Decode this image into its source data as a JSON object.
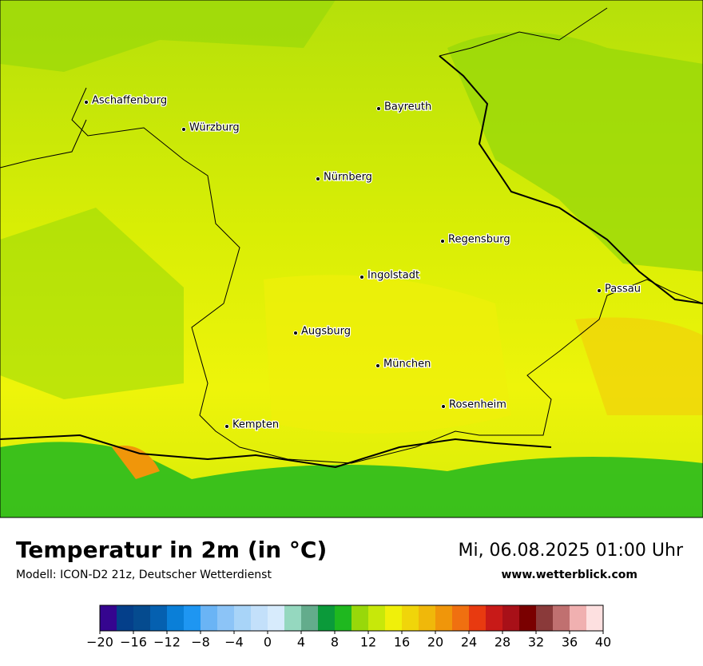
{
  "map": {
    "cities": [
      "Aschaffenburg",
      "Würzburg",
      "Bayreuth",
      "Nürnberg",
      "Regensburg",
      "Ingolstadt",
      "Passau",
      "Augsburg",
      "München",
      "Rosenheim",
      "Kempten"
    ]
  },
  "footer": {
    "title": "Temperatur in 2m (in °C)",
    "subtitle": "Modell: ICON-D2 21z, Deutscher Wetterdienst",
    "date": "Mi, 06.08.2025 01:00 Uhr",
    "website": "www.wetterblick.com"
  },
  "colorbar": {
    "range": [
      -20,
      40
    ],
    "ticks": [
      {
        "value": -20,
        "label": "−20"
      },
      {
        "value": -16,
        "label": "−16"
      },
      {
        "value": -12,
        "label": "−12"
      },
      {
        "value": -8,
        "label": "−8"
      },
      {
        "value": -4,
        "label": "−4"
      },
      0,
      4,
      8,
      12,
      16,
      20,
      24,
      28,
      32,
      36,
      40
    ],
    "colors": [
      "#35058f",
      "#043f8a",
      "#054b8f",
      "#0560b0",
      "#0a7fd8",
      "#1e96f2",
      "#6ab4f5",
      "#8cc4f7",
      "#a8d4f8",
      "#c3e0fa",
      "#d7ebfc",
      "#95d8bf",
      "#63ac8c",
      "#0b9a3a",
      "#1fb81f",
      "#98d80a",
      "#c7e80a",
      "#f0f00a",
      "#f0d50a",
      "#f0b80a",
      "#f0960a",
      "#f07010",
      "#e83a10",
      "#c81a18",
      "#a81018",
      "#7a0000",
      "#8a3a3a",
      "#c07070",
      "#f0b0b0",
      "#fde0e0"
    ]
  }
}
